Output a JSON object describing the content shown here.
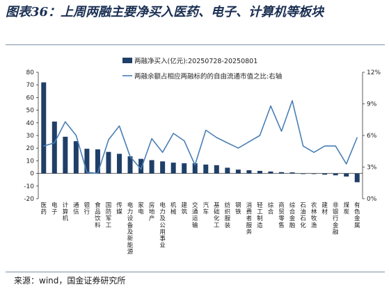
{
  "title": "图表36：上周两融主要净买入医药、电子、计算机等板块",
  "source": "来源：wind，国金证券研究所",
  "colors": {
    "bar": "#1f3f68",
    "line": "#4a7fb5"
  },
  "chart_data": {
    "type": "bar",
    "categories": [
      "医药",
      "电子",
      "计算机",
      "通信",
      "银行",
      "食品饮料",
      "国防军工",
      "传媒",
      "电力设备及新能源",
      "家电",
      "房地产",
      "电力及公用事业",
      "机械",
      "建筑",
      "交通运输",
      "汽车",
      "基础化工",
      "纺织服装",
      "钢铁",
      "消费者服务",
      "轻工制造",
      "综合",
      "商贸零售",
      "综合金融",
      "石油石化",
      "农林牧渔",
      "建材",
      "非银行金融",
      "煤炭",
      "有色金属"
    ],
    "series": [
      {
        "name": "两融净买入(亿元):20250728-20250801",
        "type": "bar",
        "axis": "left",
        "values": [
          72,
          41,
          29,
          25.5,
          19.5,
          19,
          17,
          15.5,
          13.5,
          11.5,
          10.5,
          9.5,
          8.5,
          8,
          8,
          7,
          6.5,
          4.5,
          3,
          2.5,
          2,
          1.5,
          1,
          0.8,
          -0.5,
          -0.5,
          -1,
          -1.5,
          -2.5,
          -7
        ]
      },
      {
        "name": "两融余额占相应两融标的的自由流通市值之比:右轴",
        "type": "line",
        "axis": "right",
        "values": [
          5.0,
          5.3,
          7.3,
          6.0,
          2.5,
          2.4,
          5.6,
          6.9,
          4.0,
          2.8,
          5.7,
          4.4,
          6.2,
          5.5,
          3.2,
          6.5,
          5.8,
          5.3,
          4.8,
          5.4,
          6.0,
          8.8,
          6.4,
          9.3,
          5.0,
          4.4,
          5.0,
          5.0,
          3.3,
          5.8
        ]
      }
    ],
    "ylim_left": [
      -20,
      80
    ],
    "yticks_left": [
      -20,
      -10,
      0,
      10,
      20,
      30,
      40,
      50,
      60,
      70,
      80
    ],
    "ylim_right": [
      0,
      12
    ],
    "yticks_right": [
      "0%",
      "3%",
      "6%",
      "9%",
      "12%"
    ],
    "legend_placement": "top-center"
  }
}
